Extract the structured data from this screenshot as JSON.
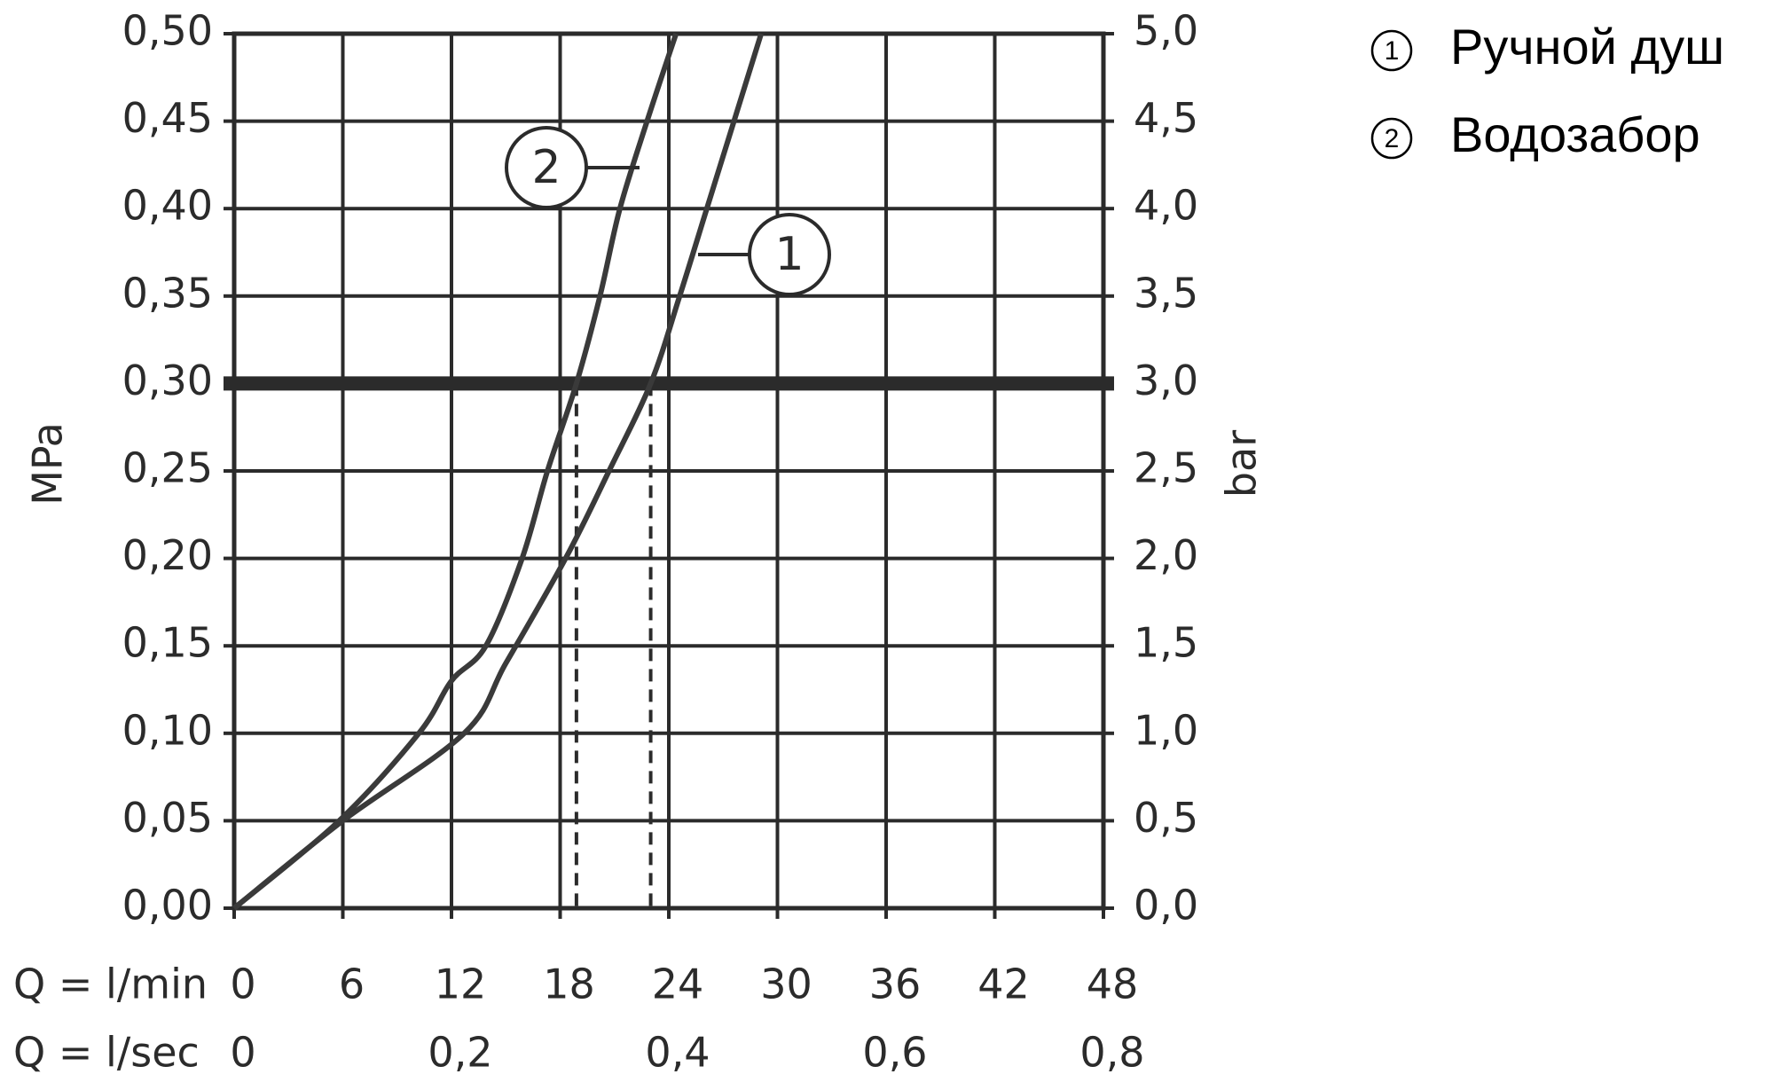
{
  "chart_data": {
    "type": "line",
    "xlabel": "Q = l/min",
    "x2label": "Q = l/sec",
    "ylabel": "MPa",
    "y2label": "bar",
    "xlim": [
      0,
      48
    ],
    "xticks": [
      0,
      6,
      12,
      18,
      24,
      30,
      36,
      42,
      48
    ],
    "x2lim": [
      0,
      0.8
    ],
    "x2ticks": [
      0,
      {
        "value": 0.2,
        "label": "0,2"
      },
      {
        "value": 0.4,
        "label": "0,4"
      },
      {
        "value": 0.6,
        "label": "0,6"
      },
      {
        "value": 0.8,
        "label": "0,8"
      }
    ],
    "ylim": [
      0,
      0.5
    ],
    "yticks": [
      {
        "value": 0,
        "label": "0,00"
      },
      {
        "value": 0.05,
        "label": "0,05"
      },
      {
        "value": 0.1,
        "label": "0,10"
      },
      {
        "value": 0.15,
        "label": "0,15"
      },
      {
        "value": 0.2,
        "label": "0,20"
      },
      {
        "value": 0.25,
        "label": "0,25"
      },
      {
        "value": 0.3,
        "label": "0,30"
      },
      {
        "value": 0.35,
        "label": "0,35"
      },
      {
        "value": 0.4,
        "label": "0,40"
      },
      {
        "value": 0.45,
        "label": "0,45"
      },
      {
        "value": 0.5,
        "label": "0,50"
      }
    ],
    "y2lim": [
      0,
      5
    ],
    "y2ticks": [
      {
        "value": 0,
        "label": "0,0"
      },
      {
        "value": 0.5,
        "label": "0,5"
      },
      {
        "value": 1,
        "label": "1,0"
      },
      {
        "value": 1.5,
        "label": "1,5"
      },
      {
        "value": 2,
        "label": "2,0"
      },
      {
        "value": 2.5,
        "label": "2,5"
      },
      {
        "value": 3,
        "label": "3,0"
      },
      {
        "value": 3.5,
        "label": "3,5"
      },
      {
        "value": 4,
        "label": "4,0"
      },
      {
        "value": 4.5,
        "label": "4,5"
      },
      {
        "value": 5,
        "label": "5,0"
      }
    ],
    "grid": true,
    "reference_y": 0.3,
    "reference_x": [
      18.9,
      23
    ],
    "legend": "right",
    "color": "#2b2b2b",
    "series": [
      {
        "name": "Ручной душ",
        "label": "1",
        "color": "#3a3a3a",
        "x": [
          0,
          6,
          12.7,
          15,
          18.3,
          20.7,
          23,
          24.6,
          26.1,
          27.6,
          29.1
        ],
        "values": [
          0,
          0.05,
          0.1,
          0.14,
          0.2,
          0.25,
          0.3,
          0.35,
          0.4,
          0.45,
          0.5
        ]
      },
      {
        "name": "Водозабор",
        "label": "2",
        "color": "#3a3a3a",
        "x": [
          0,
          5.8,
          10.2,
          12,
          13.9,
          15.9,
          17.3,
          18.9,
          20.2,
          21.3,
          22.8,
          24.4
        ],
        "values": [
          0,
          0.05,
          0.1,
          0.13,
          0.15,
          0.2,
          0.25,
          0.3,
          0.35,
          0.4,
          0.45,
          0.5
        ]
      }
    ]
  }
}
